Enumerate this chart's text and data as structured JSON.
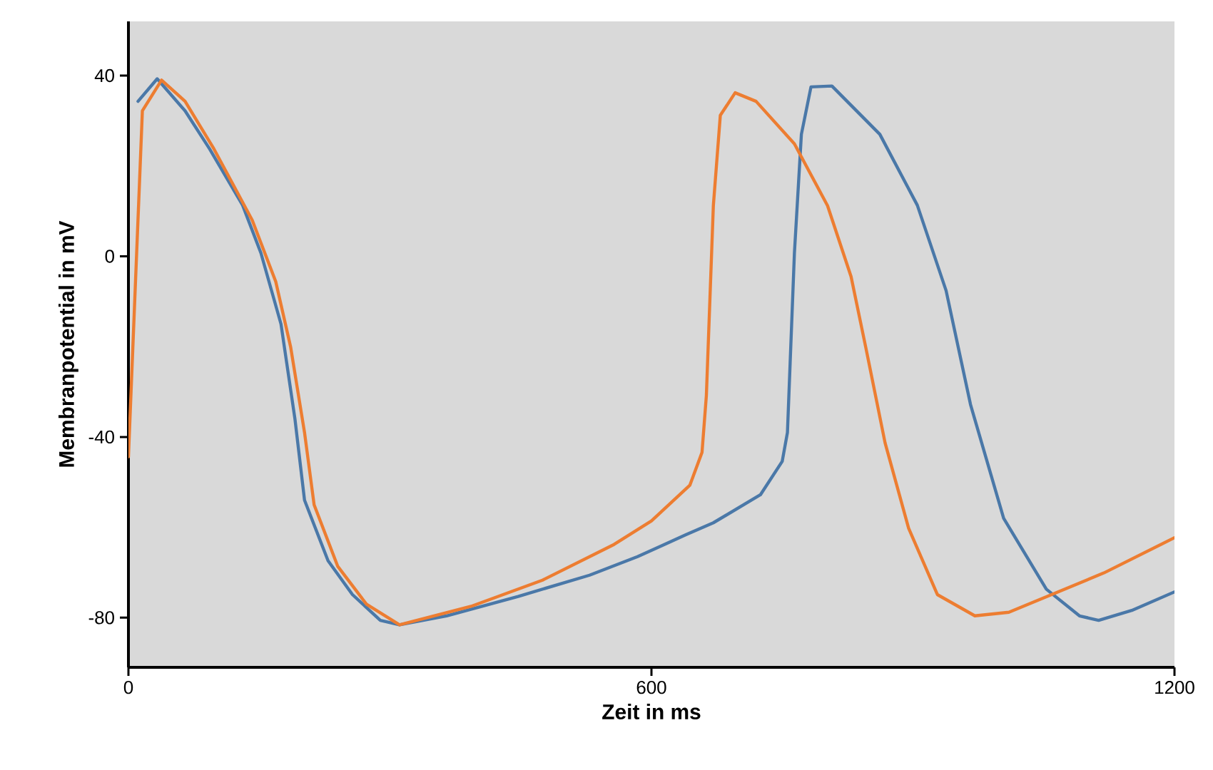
{
  "chart_data": {
    "type": "line",
    "xlabel": "Zeit in ms",
    "ylabel": "Membranpotential in mV",
    "xlim": [
      0,
      1200
    ],
    "ylim": [
      -91,
      52
    ],
    "xticks": [
      0,
      600,
      1200
    ],
    "yticks": [
      -80,
      -40,
      0,
      40
    ],
    "series": [
      {
        "color": "#4a78a8",
        "x": [
          11,
          33,
          65,
          93,
          131,
          152,
          175,
          191,
          202,
          229,
          257,
          289,
          311,
          365,
          447,
          529,
          584,
          639,
          671,
          725,
          750,
          756,
          764,
          772,
          783,
          807,
          862,
          905,
          938,
          966,
          1004,
          1053,
          1091,
          1113,
          1151,
          1200
        ],
        "values": [
          34.3,
          39.3,
          32.2,
          23.8,
          11.3,
          0.7,
          -15,
          -36,
          -54,
          -67.4,
          -74.9,
          -80.6,
          -81.6,
          -79.6,
          -75.3,
          -70.6,
          -66.5,
          -61.7,
          -59,
          -52.8,
          -45.4,
          -39,
          0.7,
          27,
          37.5,
          37.7,
          27,
          11.3,
          -7.6,
          -32.8,
          -58,
          -73.7,
          -79.6,
          -80.6,
          -78.4,
          -74.3
        ]
      },
      {
        "color": "#ed7d31",
        "x": [
          0,
          16,
          38,
          65,
          98,
          142,
          169,
          186,
          202,
          213,
          240,
          273,
          311,
          393,
          475,
          557,
          600,
          644,
          658,
          663,
          671,
          679,
          696,
          720,
          764,
          802,
          829,
          846,
          868,
          895,
          928,
          971,
          1010,
          1059,
          1119,
          1200
        ],
        "values": [
          -44.4,
          32.2,
          39,
          34.3,
          23.8,
          8,
          -5.6,
          -20,
          -39,
          -55,
          -68.6,
          -77,
          -81.6,
          -77.5,
          -71.7,
          -63.8,
          -58.6,
          -50.7,
          -43.4,
          -30.8,
          11.2,
          31.2,
          36.2,
          34.3,
          24.9,
          11.2,
          -4.5,
          -20.3,
          -41.3,
          -60.2,
          -74.9,
          -79.6,
          -78.8,
          -74.9,
          -70.1,
          -62.3
        ]
      }
    ]
  }
}
